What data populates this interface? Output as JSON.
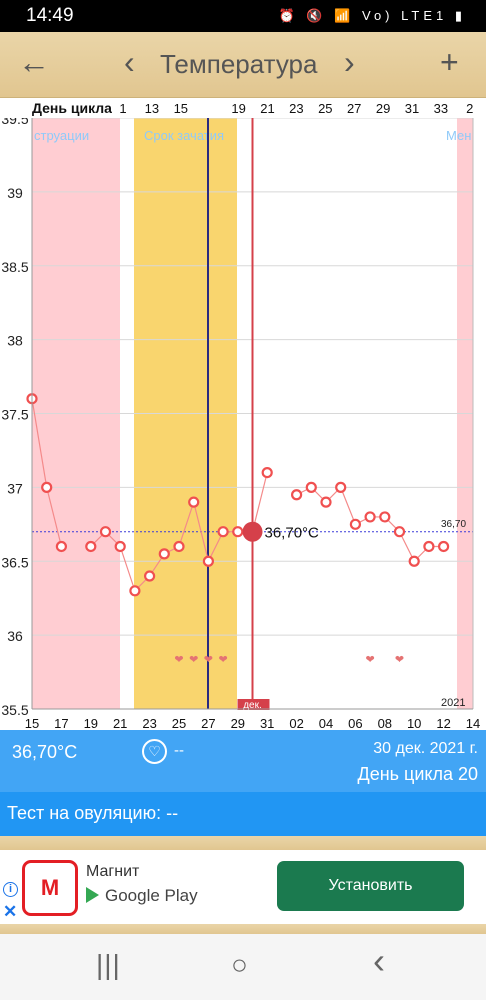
{
  "status_bar": {
    "time": "14:49",
    "icons": "⏰ 🔇 📶 Vo) LTE1 ▮"
  },
  "app_bar": {
    "back_icon": "←",
    "prev_icon": "‹",
    "title": "Температура",
    "next_icon": "›",
    "add_icon": "+"
  },
  "chart_data": {
    "type": "line",
    "header_label": "День цикла",
    "cycle_day_ticks": [
      "1",
      "13",
      "15",
      "",
      "19",
      "21",
      "23",
      "25",
      "27",
      "29",
      "31",
      "33",
      "2"
    ],
    "date_ticks": [
      "15",
      "17",
      "19",
      "21",
      "23",
      "25",
      "27",
      "29",
      "31",
      "02",
      "04",
      "06",
      "08",
      "10",
      "12",
      "14"
    ],
    "y_ticks": [
      "39.5",
      "39",
      "38.5",
      "38",
      "37.5",
      "37",
      "36.5",
      "36",
      "35.5"
    ],
    "ylim": [
      35.5,
      39.5
    ],
    "band_labels": {
      "menstruation_left": "струации",
      "fertile": "Срок зачатия",
      "menstruation_right": "Мен"
    },
    "month_label": "дек.",
    "year_label": "2021",
    "coverline_label": "36,70",
    "selected_label": "36,70°C",
    "temperatures": [
      37.6,
      37.0,
      36.6,
      null,
      36.6,
      36.7,
      36.6,
      36.3,
      36.4,
      36.55,
      36.6,
      36.9,
      36.5,
      36.7,
      36.7,
      36.7,
      37.1,
      null,
      36.95,
      37.0,
      36.9,
      37.0,
      36.75,
      36.8,
      36.8,
      36.7,
      36.5,
      36.6,
      36.6
    ],
    "coverline": 36.7,
    "selected_index": 15,
    "heart_days": [
      10,
      11,
      12,
      13,
      23,
      25
    ],
    "colors": {
      "menstruation": "#ffcdd2",
      "fertile": "#f9d56e",
      "line": "#f48a8a",
      "marker": "#f05050",
      "today": "#d5404a",
      "ovulation": "#2a2a80",
      "coverline": "#3b3bd9",
      "band_label": "#90caf9"
    }
  },
  "temp_bar": {
    "value": "36,70°C",
    "heart_icon": "♡",
    "heart_value": "--",
    "date": "30 дек. 2021 г.",
    "cycle_day": "День цикла 20"
  },
  "ovulation_bar": {
    "text": "Тест на овуляцию: --"
  },
  "ad": {
    "info_icon": "i",
    "close_icon": "✕",
    "logo_text": "М",
    "app_name": "Магнит",
    "store": "Google Play",
    "install_label": "Установить"
  },
  "nav_bar": {
    "recents_icon": "|||",
    "home_icon": "○",
    "back_icon": "‹"
  }
}
